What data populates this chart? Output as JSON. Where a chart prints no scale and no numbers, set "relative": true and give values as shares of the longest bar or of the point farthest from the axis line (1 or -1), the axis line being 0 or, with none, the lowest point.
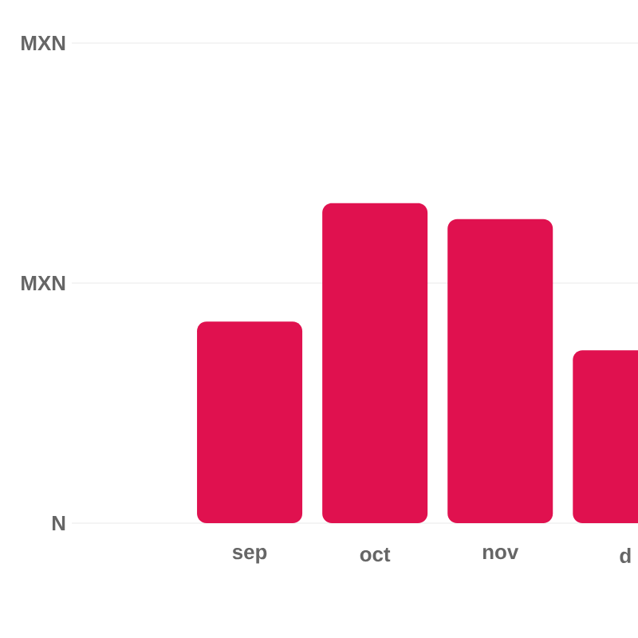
{
  "chart_data": {
    "type": "bar",
    "categories": [
      "sep",
      "oct",
      "nov",
      "d"
    ],
    "values": [
      0.63,
      1,
      0.95,
      0.54
    ],
    "color": "#e0114f",
    "relative": true,
    "annotations": [
      "MXN",
      "N"
    ],
    "ref_lines": [
      {
        "axis": "y",
        "value": 0.75,
        "label": "MXN",
        "color": "#e5e5e5"
      }
    ]
  }
}
